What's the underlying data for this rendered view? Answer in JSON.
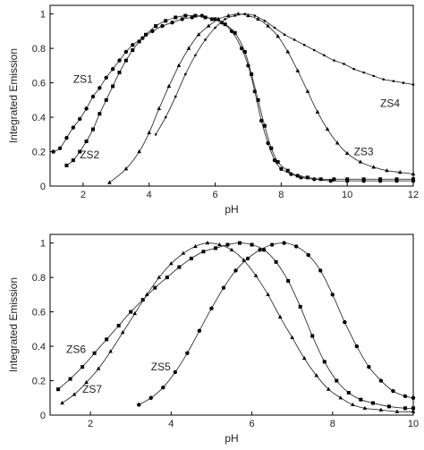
{
  "chart_data": [
    {
      "type": "scatter",
      "title": "",
      "xlabel": "pH",
      "ylabel": "Integrated Emission",
      "xlim": [
        1,
        12
      ],
      "ylim": [
        0,
        1.05
      ],
      "xticks": [
        2,
        4,
        6,
        8,
        10,
        12
      ],
      "yticks": [
        0,
        0.2,
        0.4,
        0.6,
        0.8,
        1
      ],
      "grid": false,
      "series": [
        {
          "name": "ZS1",
          "marker": "circle",
          "points": [
            [
              1.1,
              0.2
            ],
            [
              1.3,
              0.22
            ],
            [
              1.5,
              0.28
            ],
            [
              1.7,
              0.34
            ],
            [
              1.9,
              0.39
            ],
            [
              2.1,
              0.45
            ],
            [
              2.3,
              0.52
            ],
            [
              2.5,
              0.57
            ],
            [
              2.7,
              0.63
            ],
            [
              2.9,
              0.68
            ],
            [
              3.1,
              0.73
            ],
            [
              3.3,
              0.78
            ],
            [
              3.5,
              0.82
            ],
            [
              3.8,
              0.86
            ],
            [
              4.1,
              0.9
            ],
            [
              4.4,
              0.93
            ],
            [
              4.7,
              0.95
            ],
            [
              5.0,
              0.97
            ],
            [
              5.3,
              0.98
            ],
            [
              5.6,
              0.99
            ],
            [
              5.9,
              0.97
            ],
            [
              6.2,
              0.95
            ],
            [
              6.5,
              0.9
            ],
            [
              6.8,
              0.8
            ],
            [
              7.0,
              0.7
            ],
            [
              7.2,
              0.55
            ],
            [
              7.4,
              0.38
            ],
            [
              7.6,
              0.25
            ],
            [
              7.8,
              0.15
            ],
            [
              8.0,
              0.1
            ],
            [
              8.3,
              0.07
            ],
            [
              8.6,
              0.05
            ],
            [
              9.0,
              0.04
            ],
            [
              9.5,
              0.03
            ],
            [
              10.0,
              0.03
            ],
            [
              10.5,
              0.03
            ],
            [
              11.0,
              0.03
            ],
            [
              11.5,
              0.03
            ],
            [
              12.0,
              0.03
            ]
          ]
        },
        {
          "name": "ZS2",
          "marker": "square",
          "points": [
            [
              1.5,
              0.12
            ],
            [
              1.7,
              0.15
            ],
            [
              1.9,
              0.2
            ],
            [
              2.1,
              0.26
            ],
            [
              2.3,
              0.33
            ],
            [
              2.5,
              0.42
            ],
            [
              2.7,
              0.5
            ],
            [
              2.9,
              0.58
            ],
            [
              3.1,
              0.66
            ],
            [
              3.3,
              0.73
            ],
            [
              3.5,
              0.79
            ],
            [
              3.7,
              0.84
            ],
            [
              3.9,
              0.88
            ],
            [
              4.2,
              0.93
            ],
            [
              4.5,
              0.96
            ],
            [
              4.8,
              0.98
            ],
            [
              5.1,
              0.99
            ],
            [
              5.4,
              0.99
            ],
            [
              5.7,
              0.98
            ],
            [
              6.0,
              0.97
            ],
            [
              6.3,
              0.94
            ],
            [
              6.6,
              0.89
            ],
            [
              6.9,
              0.78
            ],
            [
              7.1,
              0.65
            ],
            [
              7.3,
              0.5
            ],
            [
              7.5,
              0.35
            ],
            [
              7.7,
              0.22
            ],
            [
              7.9,
              0.14
            ],
            [
              8.2,
              0.09
            ],
            [
              8.5,
              0.06
            ],
            [
              8.8,
              0.05
            ],
            [
              9.2,
              0.04
            ],
            [
              9.6,
              0.04
            ],
            [
              10.0,
              0.04
            ],
            [
              10.5,
              0.04
            ],
            [
              11.0,
              0.04
            ],
            [
              11.5,
              0.04
            ],
            [
              12.0,
              0.04
            ]
          ]
        },
        {
          "name": "ZS3",
          "marker": "triangle",
          "points": [
            [
              2.8,
              0.02
            ],
            [
              3.3,
              0.1
            ],
            [
              3.7,
              0.2
            ],
            [
              4.0,
              0.31
            ],
            [
              4.3,
              0.45
            ],
            [
              4.6,
              0.58
            ],
            [
              4.9,
              0.7
            ],
            [
              5.2,
              0.8
            ],
            [
              5.5,
              0.88
            ],
            [
              5.8,
              0.93
            ],
            [
              6.1,
              0.97
            ],
            [
              6.4,
              0.99
            ],
            [
              6.7,
              1.0
            ],
            [
              7.0,
              0.99
            ],
            [
              7.3,
              0.97
            ],
            [
              7.6,
              0.93
            ],
            [
              7.9,
              0.87
            ],
            [
              8.2,
              0.78
            ],
            [
              8.5,
              0.67
            ],
            [
              8.8,
              0.55
            ],
            [
              9.1,
              0.43
            ],
            [
              9.4,
              0.33
            ],
            [
              9.7,
              0.25
            ],
            [
              10.0,
              0.19
            ],
            [
              10.4,
              0.14
            ],
            [
              10.8,
              0.11
            ],
            [
              11.2,
              0.09
            ],
            [
              11.6,
              0.08
            ],
            [
              12.0,
              0.07
            ]
          ]
        },
        {
          "name": "ZS4",
          "marker": "small-dot",
          "points": [
            [
              4.2,
              0.3
            ],
            [
              4.5,
              0.4
            ],
            [
              4.8,
              0.52
            ],
            [
              5.1,
              0.65
            ],
            [
              5.4,
              0.76
            ],
            [
              5.7,
              0.85
            ],
            [
              6.0,
              0.92
            ],
            [
              6.3,
              0.97
            ],
            [
              6.6,
              0.99
            ],
            [
              6.9,
              1.0
            ],
            [
              7.2,
              0.99
            ],
            [
              7.5,
              0.96
            ],
            [
              7.8,
              0.92
            ],
            [
              8.1,
              0.88
            ],
            [
              8.4,
              0.85
            ],
            [
              8.7,
              0.82
            ],
            [
              9.0,
              0.79
            ],
            [
              9.3,
              0.76
            ],
            [
              9.6,
              0.73
            ],
            [
              9.9,
              0.71
            ],
            [
              10.2,
              0.68
            ],
            [
              10.5,
              0.66
            ],
            [
              10.8,
              0.64
            ],
            [
              11.1,
              0.62
            ],
            [
              11.4,
              0.61
            ],
            [
              11.7,
              0.6
            ],
            [
              12.0,
              0.59
            ]
          ]
        }
      ],
      "annotations": [
        {
          "text": "ZS1",
          "x": 1.7,
          "y": 0.6
        },
        {
          "text": "ZS2",
          "x": 1.9,
          "y": 0.16
        },
        {
          "text": "ZS3",
          "x": 10.2,
          "y": 0.18
        },
        {
          "text": "ZS4",
          "x": 11.0,
          "y": 0.46
        }
      ]
    },
    {
      "type": "scatter",
      "title": "",
      "xlabel": "pH",
      "ylabel": "Integrated Emission",
      "xlim": [
        1,
        10
      ],
      "ylim": [
        0,
        1.05
      ],
      "xticks": [
        2,
        4,
        6,
        8,
        10
      ],
      "yticks": [
        0,
        0.2,
        0.4,
        0.6,
        0.8,
        1
      ],
      "grid": false,
      "series": [
        {
          "name": "ZS5",
          "marker": "circle",
          "points": [
            [
              3.2,
              0.06
            ],
            [
              3.5,
              0.1
            ],
            [
              3.8,
              0.16
            ],
            [
              4.1,
              0.25
            ],
            [
              4.4,
              0.36
            ],
            [
              4.7,
              0.49
            ],
            [
              5.0,
              0.62
            ],
            [
              5.3,
              0.74
            ],
            [
              5.6,
              0.84
            ],
            [
              5.9,
              0.91
            ],
            [
              6.2,
              0.96
            ],
            [
              6.5,
              0.99
            ],
            [
              6.8,
              1.0
            ],
            [
              7.1,
              0.98
            ],
            [
              7.4,
              0.93
            ],
            [
              7.7,
              0.84
            ],
            [
              8.0,
              0.7
            ],
            [
              8.3,
              0.54
            ],
            [
              8.6,
              0.4
            ],
            [
              8.9,
              0.28
            ],
            [
              9.2,
              0.2
            ],
            [
              9.5,
              0.14
            ],
            [
              9.8,
              0.11
            ],
            [
              10.0,
              0.1
            ]
          ]
        },
        {
          "name": "ZS6",
          "marker": "square",
          "points": [
            [
              1.2,
              0.15
            ],
            [
              1.5,
              0.21
            ],
            [
              1.8,
              0.28
            ],
            [
              2.1,
              0.36
            ],
            [
              2.4,
              0.44
            ],
            [
              2.7,
              0.52
            ],
            [
              3.0,
              0.6
            ],
            [
              3.3,
              0.67
            ],
            [
              3.6,
              0.74
            ],
            [
              3.9,
              0.8
            ],
            [
              4.2,
              0.86
            ],
            [
              4.5,
              0.91
            ],
            [
              4.8,
              0.95
            ],
            [
              5.1,
              0.97
            ],
            [
              5.4,
              0.99
            ],
            [
              5.7,
              1.0
            ],
            [
              6.0,
              0.99
            ],
            [
              6.3,
              0.96
            ],
            [
              6.6,
              0.89
            ],
            [
              6.9,
              0.78
            ],
            [
              7.2,
              0.63
            ],
            [
              7.5,
              0.46
            ],
            [
              7.8,
              0.31
            ],
            [
              8.1,
              0.2
            ],
            [
              8.4,
              0.13
            ],
            [
              8.7,
              0.09
            ],
            [
              9.0,
              0.07
            ],
            [
              9.4,
              0.05
            ],
            [
              9.8,
              0.04
            ],
            [
              10.0,
              0.04
            ]
          ]
        },
        {
          "name": "ZS7",
          "marker": "triangle",
          "points": [
            [
              1.3,
              0.07
            ],
            [
              1.6,
              0.12
            ],
            [
              1.9,
              0.19
            ],
            [
              2.2,
              0.27
            ],
            [
              2.5,
              0.37
            ],
            [
              2.8,
              0.48
            ],
            [
              3.1,
              0.59
            ],
            [
              3.4,
              0.7
            ],
            [
              3.7,
              0.8
            ],
            [
              4.0,
              0.88
            ],
            [
              4.3,
              0.94
            ],
            [
              4.6,
              0.98
            ],
            [
              4.9,
              1.0
            ],
            [
              5.2,
              0.99
            ],
            [
              5.5,
              0.96
            ],
            [
              5.8,
              0.9
            ],
            [
              6.1,
              0.81
            ],
            [
              6.4,
              0.7
            ],
            [
              6.7,
              0.57
            ],
            [
              7.0,
              0.45
            ],
            [
              7.3,
              0.33
            ],
            [
              7.6,
              0.23
            ],
            [
              7.9,
              0.15
            ],
            [
              8.2,
              0.1
            ],
            [
              8.5,
              0.06
            ],
            [
              8.8,
              0.04
            ],
            [
              9.2,
              0.03
            ],
            [
              9.6,
              0.02
            ],
            [
              10.0,
              0.02
            ]
          ]
        }
      ],
      "annotations": [
        {
          "text": "ZS6",
          "x": 1.4,
          "y": 0.36
        },
        {
          "text": "ZS7",
          "x": 1.8,
          "y": 0.13
        },
        {
          "text": "ZS5",
          "x": 3.5,
          "y": 0.26
        }
      ]
    }
  ]
}
